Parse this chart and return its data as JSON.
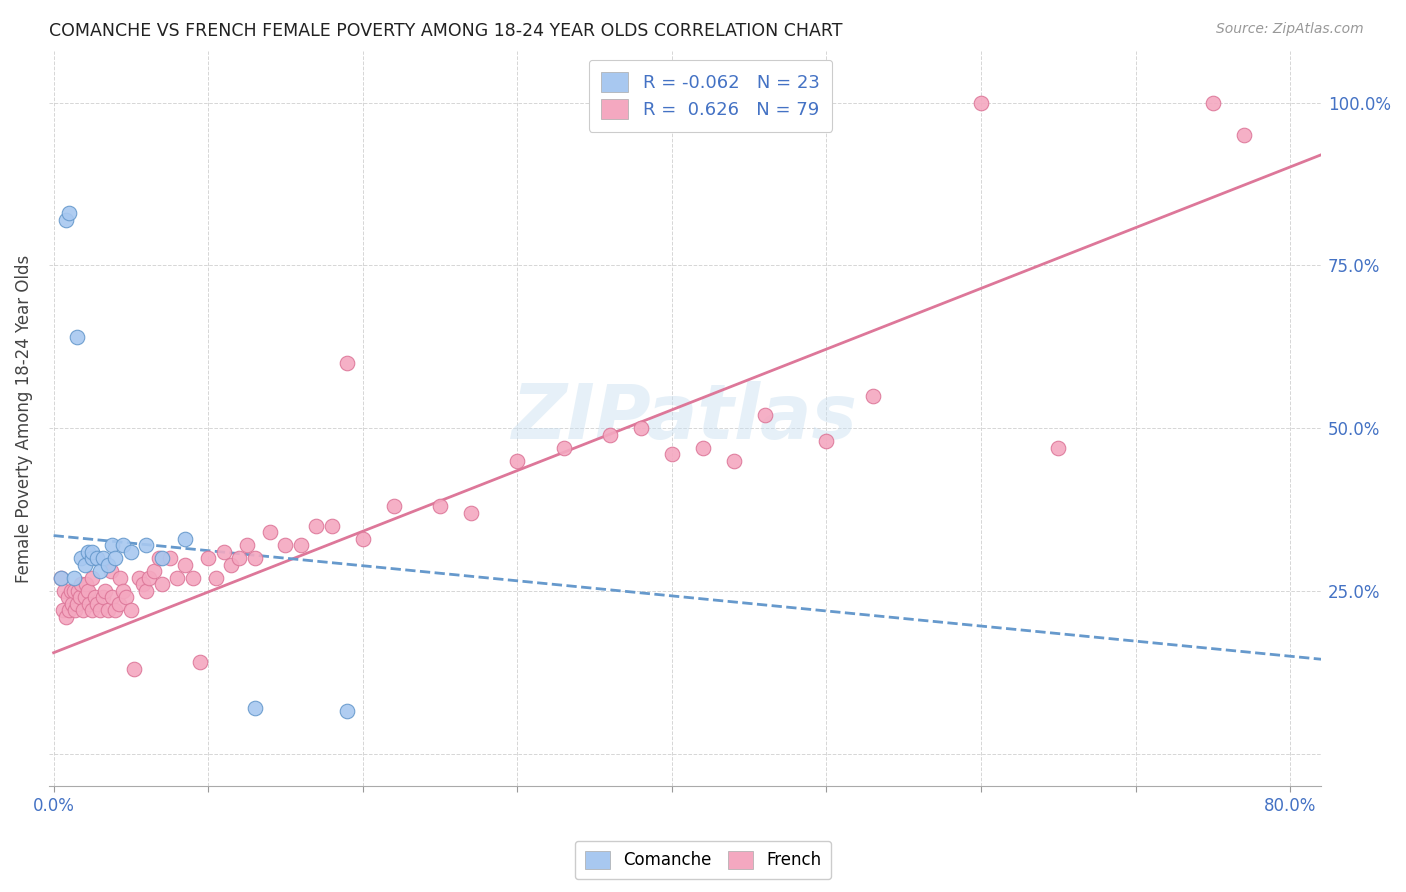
{
  "title": "COMANCHE VS FRENCH FEMALE POVERTY AMONG 18-24 YEAR OLDS CORRELATION CHART",
  "source": "Source: ZipAtlas.com",
  "ylabel": "Female Poverty Among 18-24 Year Olds",
  "xlim": [
    -0.003,
    0.82
  ],
  "ylim": [
    -0.05,
    1.08
  ],
  "x_ticks": [
    0.0,
    0.1,
    0.2,
    0.3,
    0.4,
    0.5,
    0.6,
    0.7,
    0.8
  ],
  "x_tick_labels": [
    "0.0%",
    "",
    "",
    "",
    "",
    "",
    "",
    "",
    "80.0%"
  ],
  "y_ticks": [
    0.0,
    0.25,
    0.5,
    0.75,
    1.0
  ],
  "y_tick_labels_right": [
    "",
    "25.0%",
    "50.0%",
    "75.0%",
    "100.0%"
  ],
  "comanche_color": "#A8C8F0",
  "french_color": "#F4A8C0",
  "comanche_edge": "#6699CC",
  "french_edge": "#DD7799",
  "trend_comanche_color": "#6699CC",
  "trend_french_color": "#DD7799",
  "watermark": "ZIPatlas",
  "legend_comanche_R": "-0.062",
  "legend_comanche_N": "23",
  "legend_french_R": "0.626",
  "legend_french_N": "79",
  "trend_french_x0": 0.0,
  "trend_french_y0": 0.155,
  "trend_french_x1": 0.82,
  "trend_french_y1": 0.92,
  "trend_comanche_x0": 0.0,
  "trend_comanche_y0": 0.335,
  "trend_comanche_x1": 0.82,
  "trend_comanche_y1": 0.145,
  "comanche_x": [
    0.005,
    0.008,
    0.01,
    0.013,
    0.015,
    0.018,
    0.02,
    0.022,
    0.025,
    0.025,
    0.028,
    0.03,
    0.032,
    0.035,
    0.038,
    0.04,
    0.045,
    0.05,
    0.06,
    0.07,
    0.085,
    0.13,
    0.19
  ],
  "comanche_y": [
    0.27,
    0.82,
    0.83,
    0.27,
    0.64,
    0.3,
    0.29,
    0.31,
    0.3,
    0.31,
    0.3,
    0.28,
    0.3,
    0.29,
    0.32,
    0.3,
    0.32,
    0.31,
    0.32,
    0.3,
    0.33,
    0.07,
    0.065
  ],
  "french_x": [
    0.005,
    0.006,
    0.007,
    0.008,
    0.009,
    0.01,
    0.011,
    0.012,
    0.013,
    0.014,
    0.015,
    0.016,
    0.017,
    0.018,
    0.019,
    0.02,
    0.021,
    0.022,
    0.023,
    0.025,
    0.025,
    0.027,
    0.028,
    0.03,
    0.032,
    0.033,
    0.035,
    0.037,
    0.038,
    0.04,
    0.042,
    0.043,
    0.045,
    0.047,
    0.05,
    0.052,
    0.055,
    0.058,
    0.06,
    0.062,
    0.065,
    0.068,
    0.07,
    0.075,
    0.08,
    0.085,
    0.09,
    0.095,
    0.1,
    0.105,
    0.11,
    0.115,
    0.12,
    0.125,
    0.13,
    0.14,
    0.15,
    0.16,
    0.17,
    0.18,
    0.19,
    0.2,
    0.22,
    0.25,
    0.27,
    0.3,
    0.33,
    0.36,
    0.38,
    0.4,
    0.42,
    0.44,
    0.46,
    0.5,
    0.53,
    0.6,
    0.65,
    0.75,
    0.77
  ],
  "french_y": [
    0.27,
    0.22,
    0.25,
    0.21,
    0.24,
    0.22,
    0.25,
    0.23,
    0.25,
    0.22,
    0.23,
    0.25,
    0.24,
    0.26,
    0.22,
    0.24,
    0.26,
    0.25,
    0.23,
    0.22,
    0.27,
    0.24,
    0.23,
    0.22,
    0.24,
    0.25,
    0.22,
    0.28,
    0.24,
    0.22,
    0.23,
    0.27,
    0.25,
    0.24,
    0.22,
    0.13,
    0.27,
    0.26,
    0.25,
    0.27,
    0.28,
    0.3,
    0.26,
    0.3,
    0.27,
    0.29,
    0.27,
    0.14,
    0.3,
    0.27,
    0.31,
    0.29,
    0.3,
    0.32,
    0.3,
    0.34,
    0.32,
    0.32,
    0.35,
    0.35,
    0.6,
    0.33,
    0.38,
    0.38,
    0.37,
    0.45,
    0.47,
    0.49,
    0.5,
    0.46,
    0.47,
    0.45,
    0.52,
    0.48,
    0.55,
    1.0,
    0.47,
    1.0,
    0.95
  ]
}
